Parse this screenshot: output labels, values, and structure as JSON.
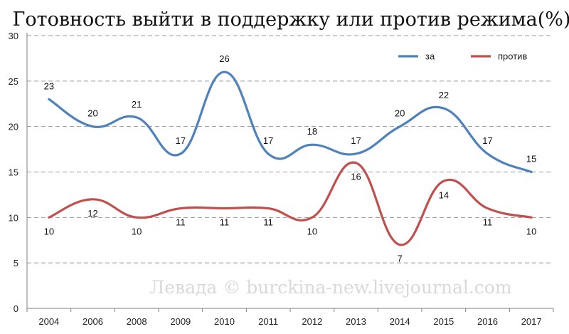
{
  "chart_data": {
    "type": "line",
    "title": "Готовность выйти в поддержку или против режима(%)",
    "xlabel": "",
    "ylabel": "",
    "ylim": [
      0,
      30
    ],
    "yticks": [
      "0",
      "5",
      "10",
      "15",
      "20",
      "25",
      "30"
    ],
    "grid": "horizontal dashed",
    "legend_position": "top-right",
    "categories": [
      "2004",
      "2006",
      "2008",
      "2009",
      "2010",
      "2011",
      "2012",
      "2013",
      "2014",
      "2015",
      "2016",
      "2017"
    ],
    "series": [
      {
        "name": "за",
        "color": "#4f81bd",
        "values": [
          23,
          20,
          21,
          17,
          26,
          17,
          18,
          17,
          20,
          22,
          17,
          15
        ]
      },
      {
        "name": "против",
        "color": "#c0504d",
        "values": [
          10,
          12,
          10,
          11,
          11,
          11,
          10,
          16,
          7,
          14,
          11,
          10
        ]
      }
    ],
    "watermark": "Левада © burckina-new.livejournal.com"
  }
}
